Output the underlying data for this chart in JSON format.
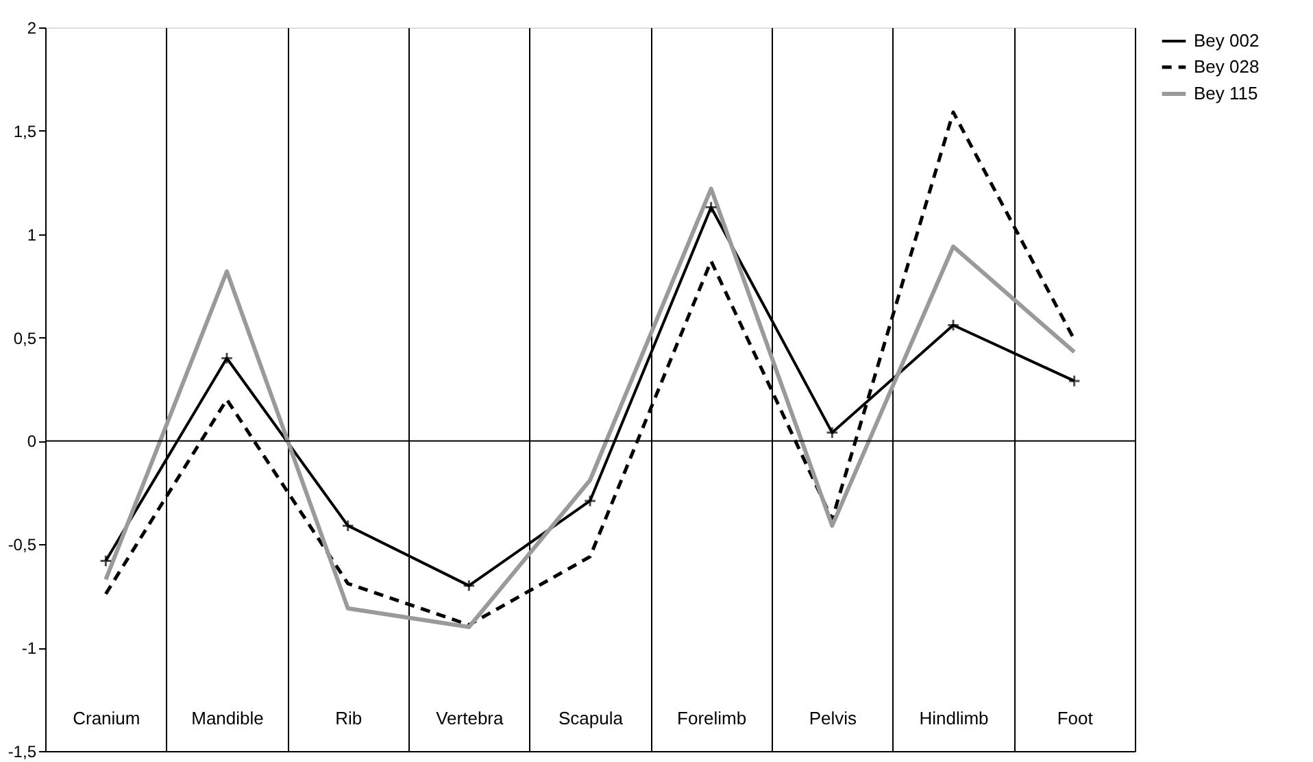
{
  "chart_data": {
    "type": "line",
    "categories": [
      "Cranium",
      "Mandible",
      "Rib",
      "Vertebra",
      "Scapula",
      "Forelimb",
      "Pelvis",
      "Hindlimb",
      "Foot"
    ],
    "series": [
      {
        "name": "Bey 002",
        "color": "#000000",
        "line_style": "solid",
        "marker": "cross",
        "values": [
          -0.58,
          0.4,
          -0.41,
          -0.7,
          -0.29,
          1.13,
          0.04,
          0.56,
          0.29
        ]
      },
      {
        "name": "Bey 028",
        "color": "#000000",
        "line_style": "dashed",
        "marker": "none",
        "values": [
          -0.74,
          0.2,
          -0.69,
          -0.89,
          -0.56,
          0.87,
          -0.38,
          1.59,
          0.49
        ]
      },
      {
        "name": "Bey 115",
        "color": "#9a9a9a",
        "line_style": "solid",
        "marker": "none",
        "values": [
          -0.67,
          0.82,
          -0.81,
          -0.9,
          -0.19,
          1.22,
          -0.41,
          0.94,
          0.43
        ]
      }
    ],
    "ylim": [
      -1.5,
      2
    ],
    "yticks": [
      {
        "value": -1.5,
        "label": "-1,5"
      },
      -1,
      {
        "value": -0.5,
        "label": "-0,5"
      },
      0,
      {
        "value": 0.5,
        "label": "0,5"
      },
      1,
      {
        "value": 1.5,
        "label": "1,5"
      },
      2
    ],
    "ref_lines": [
      {
        "axis": "y",
        "value": 0,
        "color": "#000000"
      }
    ],
    "grid": "x",
    "legend": "right"
  }
}
